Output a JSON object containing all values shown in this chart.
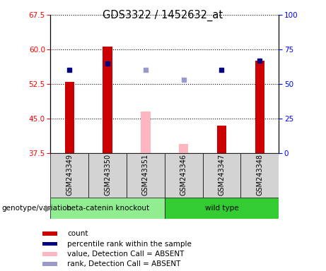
{
  "title": "GDS3322 / 1452632_at",
  "samples": [
    "GSM243349",
    "GSM243350",
    "GSM243351",
    "GSM243346",
    "GSM243347",
    "GSM243348"
  ],
  "ylim_left": [
    37.5,
    67.5
  ],
  "ylim_right": [
    0,
    100
  ],
  "yticks_left": [
    37.5,
    45.0,
    52.5,
    60.0,
    67.5
  ],
  "yticks_right": [
    0,
    25,
    50,
    75,
    100
  ],
  "bar_data": {
    "GSM243349": {
      "value": 53.0,
      "absent": false
    },
    "GSM243350": {
      "value": 60.7,
      "absent": false
    },
    "GSM243351": {
      "value": 46.5,
      "absent": true
    },
    "GSM243346": {
      "value": 39.5,
      "absent": true
    },
    "GSM243347": {
      "value": 43.5,
      "absent": false
    },
    "GSM243348": {
      "value": 57.5,
      "absent": false
    }
  },
  "rank_data": {
    "GSM243349": {
      "value": 55.5,
      "absent": false
    },
    "GSM243350": {
      "value": 57.0,
      "absent": false
    },
    "GSM243351": {
      "value": 55.5,
      "absent": true
    },
    "GSM243346": {
      "value": 53.5,
      "absent": true
    },
    "GSM243347": {
      "value": 55.5,
      "absent": false
    },
    "GSM243348": {
      "value": 57.5,
      "absent": false
    }
  },
  "bar_bottom": 37.5,
  "bar_width": 0.25,
  "colors": {
    "bar_present": "#CC0000",
    "bar_absent": "#FFB6C1",
    "rank_present": "#000080",
    "rank_absent": "#9999CC",
    "bg_plot": "#FFFFFF",
    "bg_label": "#D3D3D3",
    "bg_group1": "#90EE90",
    "bg_group2": "#33CC33"
  },
  "legend_items": [
    {
      "label": "count",
      "color": "#CC0000"
    },
    {
      "label": "percentile rank within the sample",
      "color": "#000080"
    },
    {
      "label": "value, Detection Call = ABSENT",
      "color": "#FFB6C1"
    },
    {
      "label": "rank, Detection Call = ABSENT",
      "color": "#9999CC"
    }
  ],
  "group1_label": "beta-catenin knockout",
  "group2_label": "wild type",
  "geno_label": "genotype/variation"
}
